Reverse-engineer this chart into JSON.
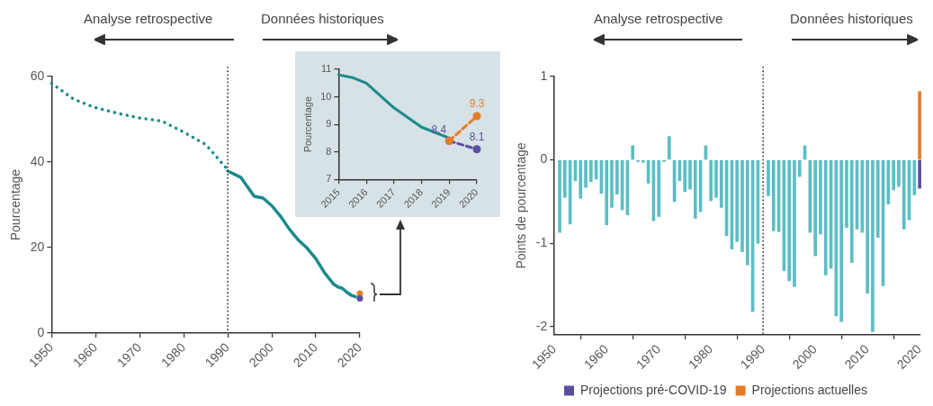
{
  "chart_data": [
    {
      "type": "line",
      "ylabel": "Pourcentage",
      "annotations": [
        "Analyse retrospective",
        "Données historiques"
      ],
      "xlim": [
        1950,
        2020
      ],
      "xticks": [
        1950,
        1960,
        1970,
        1980,
        1990,
        2000,
        2010,
        2020
      ],
      "ylim": [
        0,
        60
      ],
      "yticks": [
        0,
        20,
        40,
        60
      ],
      "ref_lines": [
        {
          "axis": "x",
          "value": 1990,
          "line_style": "dotted",
          "color": "#555555"
        }
      ],
      "series": [
        {
          "color": "#1a8a8c",
          "line_style": "dotted",
          "x": [
            1950,
            1955,
            1960,
            1965,
            1970,
            1975,
            1980,
            1985,
            1990
          ],
          "values": [
            58.4,
            54.7,
            52.7,
            51.4,
            50.3,
            49.6,
            47,
            44.1,
            38.2
          ]
        },
        {
          "color": "#1a8a8c",
          "line_style": "solid",
          "x": [
            1990,
            1993,
            1996,
            1998,
            2000,
            2002,
            2004,
            2006,
            2008,
            2010,
            2012,
            2014,
            2015,
            2016,
            2017,
            2018,
            2019
          ],
          "values": [
            37.9,
            36.4,
            32,
            31.6,
            29.8,
            27.3,
            24.3,
            21.8,
            19.9,
            17.4,
            14.1,
            11.5,
            10.8,
            10.5,
            9.6,
            8.9,
            8.5
          ]
        },
        {
          "type": "scatter",
          "color": "#5b4ea0",
          "marker": "circle",
          "x": [
            2020
          ],
          "values": [
            8.1
          ]
        },
        {
          "type": "scatter",
          "color": "#e87b26",
          "marker": "circle",
          "x": [
            2020
          ],
          "values": [
            9.3
          ]
        }
      ]
    },
    {
      "type": "line",
      "ylabel": "Pourcentage",
      "xlim": [
        2015,
        2020
      ],
      "xticks": [
        2015,
        2016,
        2017,
        2018,
        2019,
        2020
      ],
      "ylim": [
        7,
        11
      ],
      "yticks": [
        7,
        8,
        9,
        10,
        11
      ],
      "series": [
        {
          "color": "#1a8a8c",
          "line_style": "solid",
          "x": [
            2015,
            2015.5,
            2016,
            2017,
            2018,
            2019
          ],
          "values": [
            10.8,
            10.7,
            10.5,
            9.6,
            8.9,
            8.5
          ]
        },
        {
          "color": "#5b4ea0",
          "line_style": "dashed",
          "marker": "circle",
          "x": [
            2019,
            2020
          ],
          "values": [
            8.4,
            8.1
          ],
          "value_labels": [
            "8.4",
            "8.1"
          ]
        },
        {
          "color": "#e87b26",
          "line_style": "dashed",
          "marker": "circle",
          "x": [
            2019,
            2020
          ],
          "values": [
            8.4,
            9.3
          ],
          "value_labels": [
            null,
            "9.3"
          ]
        }
      ]
    },
    {
      "type": "bar",
      "ylabel": "Points de pourcentage",
      "annotations": [
        "Analyse retrospective",
        "Données historiques"
      ],
      "legend": "bottom",
      "xlim": [
        1950,
        2020
      ],
      "xticks": [
        1950,
        1960,
        1970,
        1980,
        1990,
        2000,
        2010,
        2020
      ],
      "ylim": [
        -2.1,
        1
      ],
      "yticks": [
        -2,
        -1,
        0,
        1
      ],
      "ref_lines": [
        {
          "axis": "x",
          "value": 1990,
          "line_style": "dotted",
          "color": "#555555"
        }
      ],
      "x": [
        1951,
        1952,
        1953,
        1954,
        1955,
        1956,
        1957,
        1958,
        1959,
        1960,
        1961,
        1962,
        1963,
        1964,
        1965,
        1966,
        1967,
        1968,
        1969,
        1970,
        1971,
        1972,
        1973,
        1974,
        1975,
        1976,
        1977,
        1978,
        1979,
        1980,
        1981,
        1982,
        1983,
        1984,
        1985,
        1986,
        1987,
        1988,
        1989,
        1990,
        1991,
        1992,
        1993,
        1994,
        1995,
        1996,
        1997,
        1998,
        1999,
        2000,
        2001,
        2002,
        2003,
        2004,
        2005,
        2006,
        2007,
        2008,
        2009,
        2010,
        2011,
        2012,
        2013,
        2014,
        2015,
        2016,
        2017,
        2018,
        2019
      ],
      "series": [
        {
          "color": "#5bbec4",
          "values": [
            -0.87,
            -0.45,
            -0.77,
            -0.25,
            -0.46,
            -0.33,
            -0.26,
            -0.23,
            -0.4,
            -0.78,
            -0.57,
            -0.41,
            -0.6,
            -0.66,
            0.17,
            -0.02,
            -0.03,
            -0.28,
            -0.73,
            -0.68,
            -0.02,
            0.28,
            -0.5,
            -0.25,
            -0.38,
            -0.35,
            -0.7,
            -0.62,
            0.17,
            -0.49,
            -0.45,
            -0.57,
            -0.91,
            -1.07,
            -0.98,
            -1.1,
            -1.26,
            -1.82,
            -1.0,
            null,
            -0.43,
            -0.85,
            -0.86,
            -1.33,
            -1.45,
            -1.52,
            -0.2,
            0.17,
            -0.87,
            -1.15,
            -0.89,
            -1.38,
            -1.3,
            -1.87,
            -1.94,
            -0.81,
            -1.23,
            -0.83,
            -0.87,
            -1.6,
            -2.06,
            -0.93,
            -1.51,
            -0.53,
            -0.36,
            -0.32,
            -0.83,
            -0.72,
            -0.42
          ]
        },
        {
          "name": "Projections pré-COVID-19",
          "color": "#5b4ea0",
          "x": [
            2020
          ],
          "values": [
            -0.34
          ]
        },
        {
          "name": "Projections actuelles",
          "color": "#e87b26",
          "x": [
            2020
          ],
          "values": [
            0.82
          ]
        }
      ]
    }
  ]
}
